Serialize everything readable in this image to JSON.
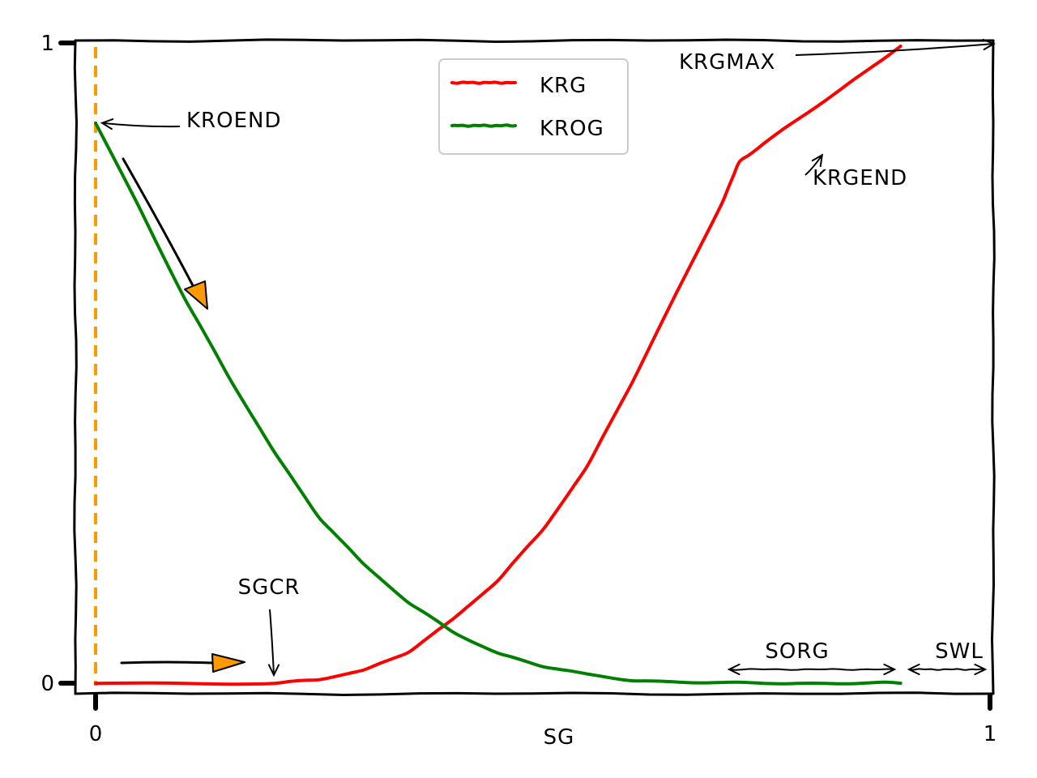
{
  "chart_data": {
    "type": "line",
    "title": "",
    "xlabel": "SG",
    "ylabel": "",
    "xlim": [
      0,
      1
    ],
    "ylim": [
      0,
      1
    ],
    "x_ticks": [
      {
        "value": 0,
        "label": "0"
      },
      {
        "value": 1,
        "label": "1"
      }
    ],
    "y_ticks": [
      {
        "value": 0,
        "label": "0"
      },
      {
        "value": 1,
        "label": "1"
      }
    ],
    "grid": false,
    "legend": {
      "position": "top-center"
    },
    "series": [
      {
        "name": "KRG",
        "color": "#ff0000",
        "x": [
          0.0,
          0.1,
          0.2,
          0.25,
          0.3,
          0.35,
          0.4,
          0.45,
          0.5,
          0.55,
          0.6,
          0.65,
          0.7,
          0.72,
          0.75,
          0.8,
          0.85,
          0.9
        ],
        "y": [
          0.0,
          0.0,
          0.0,
          0.005,
          0.02,
          0.05,
          0.1,
          0.16,
          0.24,
          0.34,
          0.47,
          0.61,
          0.75,
          0.815,
          0.845,
          0.895,
          0.945,
          0.995
        ]
      },
      {
        "name": "KROG",
        "color": "#008000",
        "x": [
          0.0,
          0.05,
          0.1,
          0.15,
          0.2,
          0.25,
          0.3,
          0.35,
          0.4,
          0.45,
          0.5,
          0.55,
          0.6,
          0.65,
          0.7,
          0.75,
          0.8,
          0.85,
          0.9
        ],
        "y": [
          0.875,
          0.74,
          0.6,
          0.475,
          0.36,
          0.26,
          0.185,
          0.125,
          0.08,
          0.047,
          0.026,
          0.013,
          0.005,
          0.002,
          0.0,
          0.0,
          0.0,
          0.0,
          0.0
        ]
      }
    ],
    "vlines": [
      {
        "x": 0.0,
        "color": "#ff9900",
        "style": "dashed"
      }
    ],
    "annotations": [
      {
        "text": "KROEND",
        "x": 0.0,
        "y": 0.875
      },
      {
        "text": "KRGEND",
        "x": 0.7,
        "y": 0.83
      },
      {
        "text": "KRGMAX",
        "x": 0.9,
        "y": 1.0
      },
      {
        "text": "SGCR",
        "x": 0.2,
        "y": 0.0
      },
      {
        "text": "SORG",
        "x_range": [
          0.71,
          0.9
        ]
      },
      {
        "text": "SWL",
        "x_range": [
          0.91,
          1.0
        ]
      }
    ],
    "accent_colors": {
      "arrow_fill": "#ff9900",
      "dashed_line": "#ff9900"
    }
  }
}
